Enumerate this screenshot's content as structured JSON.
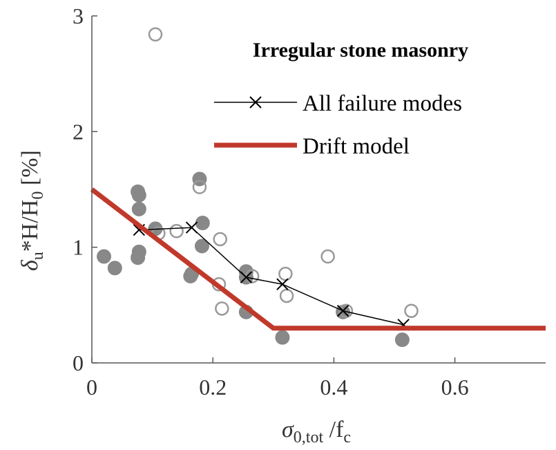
{
  "chart_data": {
    "type": "scatter",
    "title": "Irregular stone masonry",
    "xlabel": {
      "main": "σ",
      "sub": "0,tot",
      "rest": " /f",
      "sub2": "c"
    },
    "ylabel": {
      "part1": "δ",
      "sub1": "u",
      "part2": "*H/H",
      "sub2": "0",
      "part3": " [%]"
    },
    "xlim": [
      0,
      0.75
    ],
    "ylim": [
      0,
      3
    ],
    "xticks": [
      0,
      0.2,
      0.4,
      0.6
    ],
    "xtick_labels": [
      "0",
      "0.2",
      "0.4",
      "0.6"
    ],
    "yticks": [
      0,
      1,
      2,
      3
    ],
    "ytick_labels": [
      "0",
      "1",
      "2",
      "3"
    ],
    "legend": {
      "position": "top-right",
      "entries": [
        "All failure modes",
        "Drift model"
      ]
    },
    "series": [
      {
        "name": "filled points",
        "style": "filled",
        "color": "#888888",
        "points": [
          [
            0.02,
            0.92
          ],
          [
            0.038,
            0.82
          ],
          [
            0.076,
            1.48
          ],
          [
            0.078,
            1.45
          ],
          [
            0.078,
            1.33
          ],
          [
            0.078,
            0.96
          ],
          [
            0.076,
            0.91
          ],
          [
            0.105,
            1.16
          ],
          [
            0.165,
            0.77
          ],
          [
            0.163,
            0.75
          ],
          [
            0.178,
            1.59
          ],
          [
            0.183,
            1.21
          ],
          [
            0.182,
            1.01
          ],
          [
            0.255,
            0.79
          ],
          [
            0.255,
            0.74
          ],
          [
            0.255,
            0.44
          ],
          [
            0.315,
            0.22
          ],
          [
            0.415,
            0.44
          ],
          [
            0.513,
            0.2
          ]
        ]
      },
      {
        "name": "open points",
        "style": "open",
        "color": "#999999",
        "points": [
          [
            0.105,
            2.84
          ],
          [
            0.11,
            1.12
          ],
          [
            0.14,
            1.14
          ],
          [
            0.178,
            1.52
          ],
          [
            0.21,
            0.68
          ],
          [
            0.212,
            1.07
          ],
          [
            0.215,
            0.47
          ],
          [
            0.265,
            0.75
          ],
          [
            0.32,
            0.77
          ],
          [
            0.322,
            0.58
          ],
          [
            0.39,
            0.92
          ],
          [
            0.42,
            0.45
          ],
          [
            0.528,
            0.45
          ]
        ]
      },
      {
        "name": "All failure modes",
        "style": "line-x",
        "color": "#000000",
        "points": [
          [
            0.078,
            1.15
          ],
          [
            0.165,
            1.17
          ],
          [
            0.255,
            0.74
          ],
          [
            0.315,
            0.68
          ],
          [
            0.415,
            0.45
          ],
          [
            0.515,
            0.33
          ]
        ]
      },
      {
        "name": "Drift model",
        "style": "thick-line",
        "color": "#c0392b",
        "points": [
          [
            0,
            1.5
          ],
          [
            0.3,
            0.3
          ],
          [
            0.75,
            0.3
          ]
        ]
      }
    ]
  }
}
